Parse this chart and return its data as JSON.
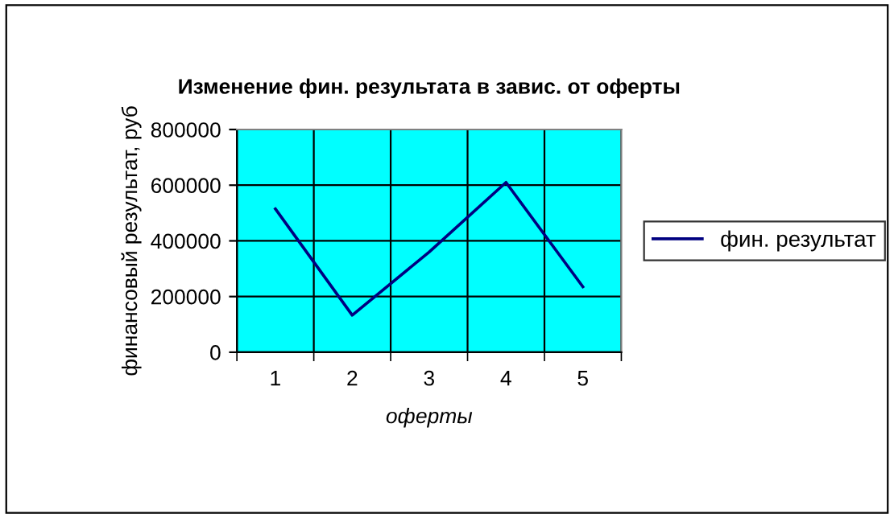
{
  "chart_data": {
    "type": "line",
    "title": "Изменение фин. результата в завис. от оферты",
    "xlabel": "оферты",
    "ylabel": "финансовый результат, руб",
    "categories": [
      "1",
      "2",
      "3",
      "4",
      "5"
    ],
    "series": [
      {
        "name": "фин. результат",
        "color": "#000080",
        "values": [
          515000,
          133000,
          360000,
          610000,
          235000
        ]
      }
    ],
    "ylim": [
      0,
      800000
    ],
    "yticks": [
      0,
      200000,
      400000,
      600000,
      800000
    ],
    "grid": true,
    "legend": "right",
    "marker": "none",
    "line_style": "solid"
  }
}
